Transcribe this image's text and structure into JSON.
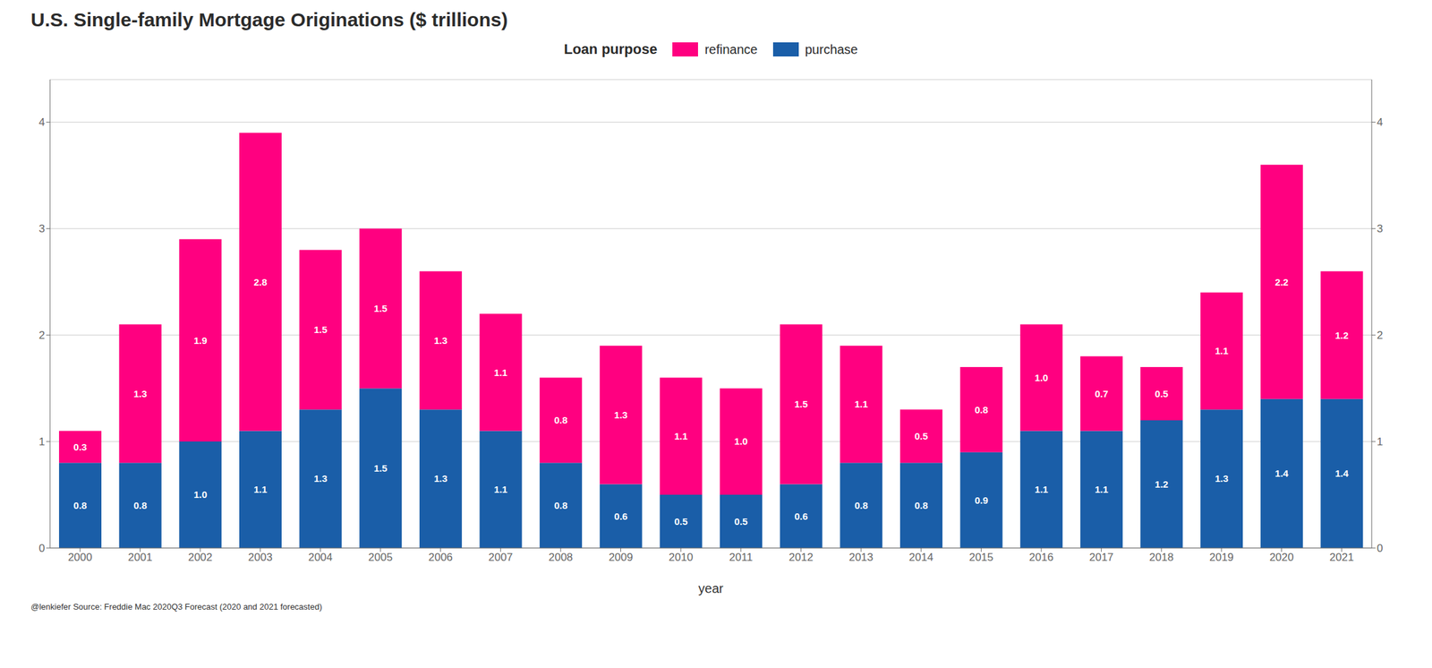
{
  "chart_data": {
    "type": "bar",
    "title": "U.S. Single-family Mortgage Originations ($ trillions)",
    "x_label": "year",
    "legend_title": "Loan purpose",
    "annotations": [
      "@lenkiefer Source: Freddie Mac 2020Q3 Forecast (2020 and 2021 forecasted)"
    ],
    "categories": [
      "2000",
      "2001",
      "2002",
      "2003",
      "2004",
      "2005",
      "2006",
      "2007",
      "2008",
      "2009",
      "2010",
      "2011",
      "2012",
      "2013",
      "2014",
      "2015",
      "2016",
      "2017",
      "2018",
      "2019",
      "2020",
      "2021"
    ],
    "series": [
      {
        "name": "purchase",
        "color": "#1a5ea8",
        "values": [
          0.8,
          0.8,
          1.0,
          1.1,
          1.3,
          1.5,
          1.3,
          1.1,
          0.8,
          0.6,
          0.5,
          0.5,
          0.6,
          0.8,
          0.8,
          0.9,
          1.1,
          1.1,
          1.2,
          1.3,
          1.4,
          1.4
        ],
        "value_labels": [
          "0.8",
          "0.8",
          "1.0",
          "1.1",
          "1.3",
          "1.5",
          "1.3",
          "1.1",
          "0.8",
          "0.6",
          "0.5",
          "0.5",
          "0.6",
          "0.8",
          "0.8",
          "0.9",
          "1.1",
          "1.1",
          "1.2",
          "1.3",
          "1.4",
          "1.4"
        ]
      },
      {
        "name": "refinance",
        "color": "#ff0080",
        "values": [
          0.3,
          1.3,
          1.9,
          2.8,
          1.5,
          1.5,
          1.3,
          1.1,
          0.8,
          1.3,
          1.1,
          1.0,
          1.5,
          1.1,
          0.5,
          0.8,
          1.0,
          0.7,
          0.5,
          1.1,
          2.2,
          1.2
        ],
        "value_labels": [
          "0.3",
          "1.3",
          "1.9",
          "2.8",
          "1.5",
          "1.5",
          "1.3",
          "1.1",
          "0.8",
          "1.3",
          "1.1",
          "1.0",
          "1.5",
          "1.1",
          "0.5",
          "0.8",
          "1.0",
          "0.7",
          "0.5",
          "1.1",
          "2.2",
          "1.2"
        ]
      }
    ],
    "stacked": true,
    "data_labels": true,
    "grid": true,
    "legend": "top",
    "ylim": [
      0,
      4.4
    ],
    "yticks": [
      0,
      1,
      2,
      3,
      4
    ],
    "y2lim": [
      0,
      4.4
    ],
    "y2ticks": [
      0,
      1,
      2,
      3,
      4
    ]
  }
}
